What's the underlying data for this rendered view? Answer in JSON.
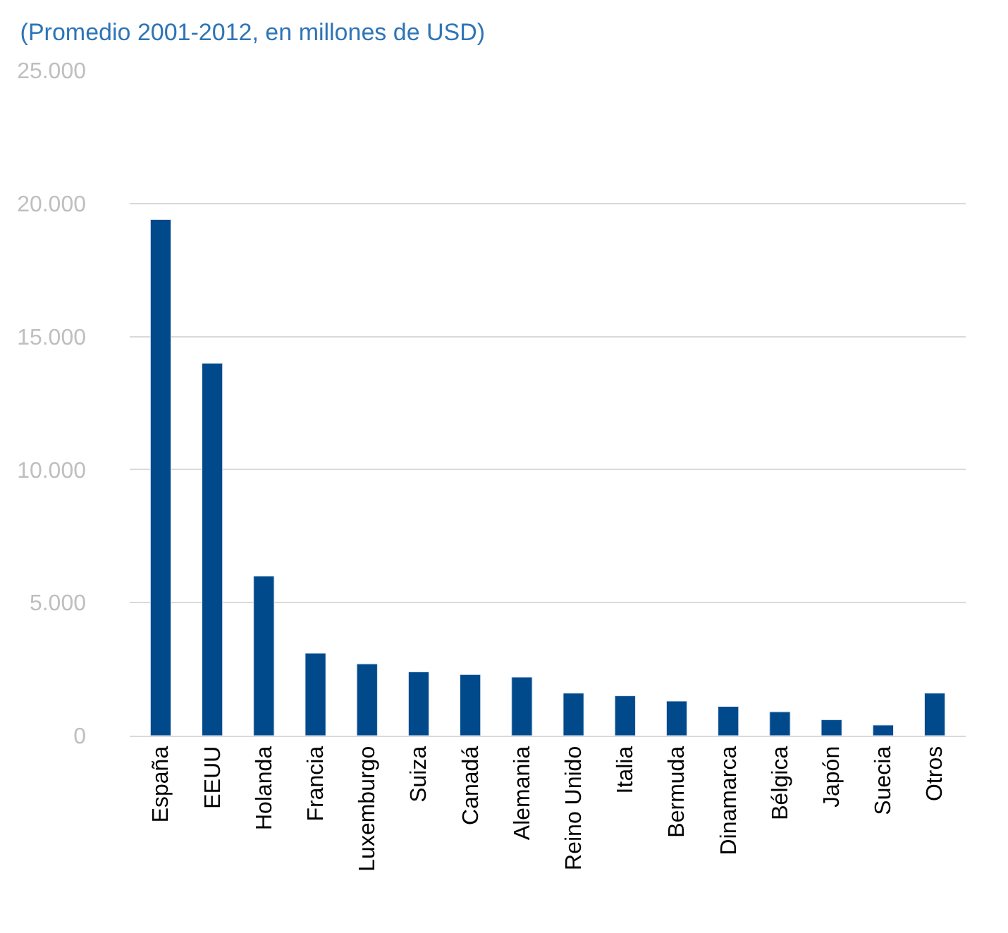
{
  "chart_data": {
    "type": "bar",
    "title": "(Promedio 2001-2012, en millones de USD)",
    "categories": [
      "España",
      "EEUU",
      "Holanda",
      "Francia",
      "Luxemburgo",
      "Suiza",
      "Canadá",
      "Alemania",
      "Reino Unido",
      "Italia",
      "Bermuda",
      "Dinamarca",
      "Bélgica",
      "Japón",
      "Suecia",
      "Otros"
    ],
    "values": [
      19400,
      14000,
      6000,
      3100,
      2700,
      2400,
      2300,
      2200,
      1600,
      1500,
      1300,
      1100,
      900,
      600,
      400,
      1600
    ],
    "color": "#004a8c",
    "ylim": [
      0,
      25000
    ],
    "yticks": [
      0,
      {
        "value": 5000,
        "label": "5.000"
      },
      {
        "value": 10000,
        "label": "10.000"
      },
      {
        "value": 15000,
        "label": "15.000"
      },
      {
        "value": 20000,
        "label": "20.000"
      },
      {
        "value": 25000,
        "label": "25.000"
      }
    ],
    "grid": "y",
    "legend": false
  }
}
